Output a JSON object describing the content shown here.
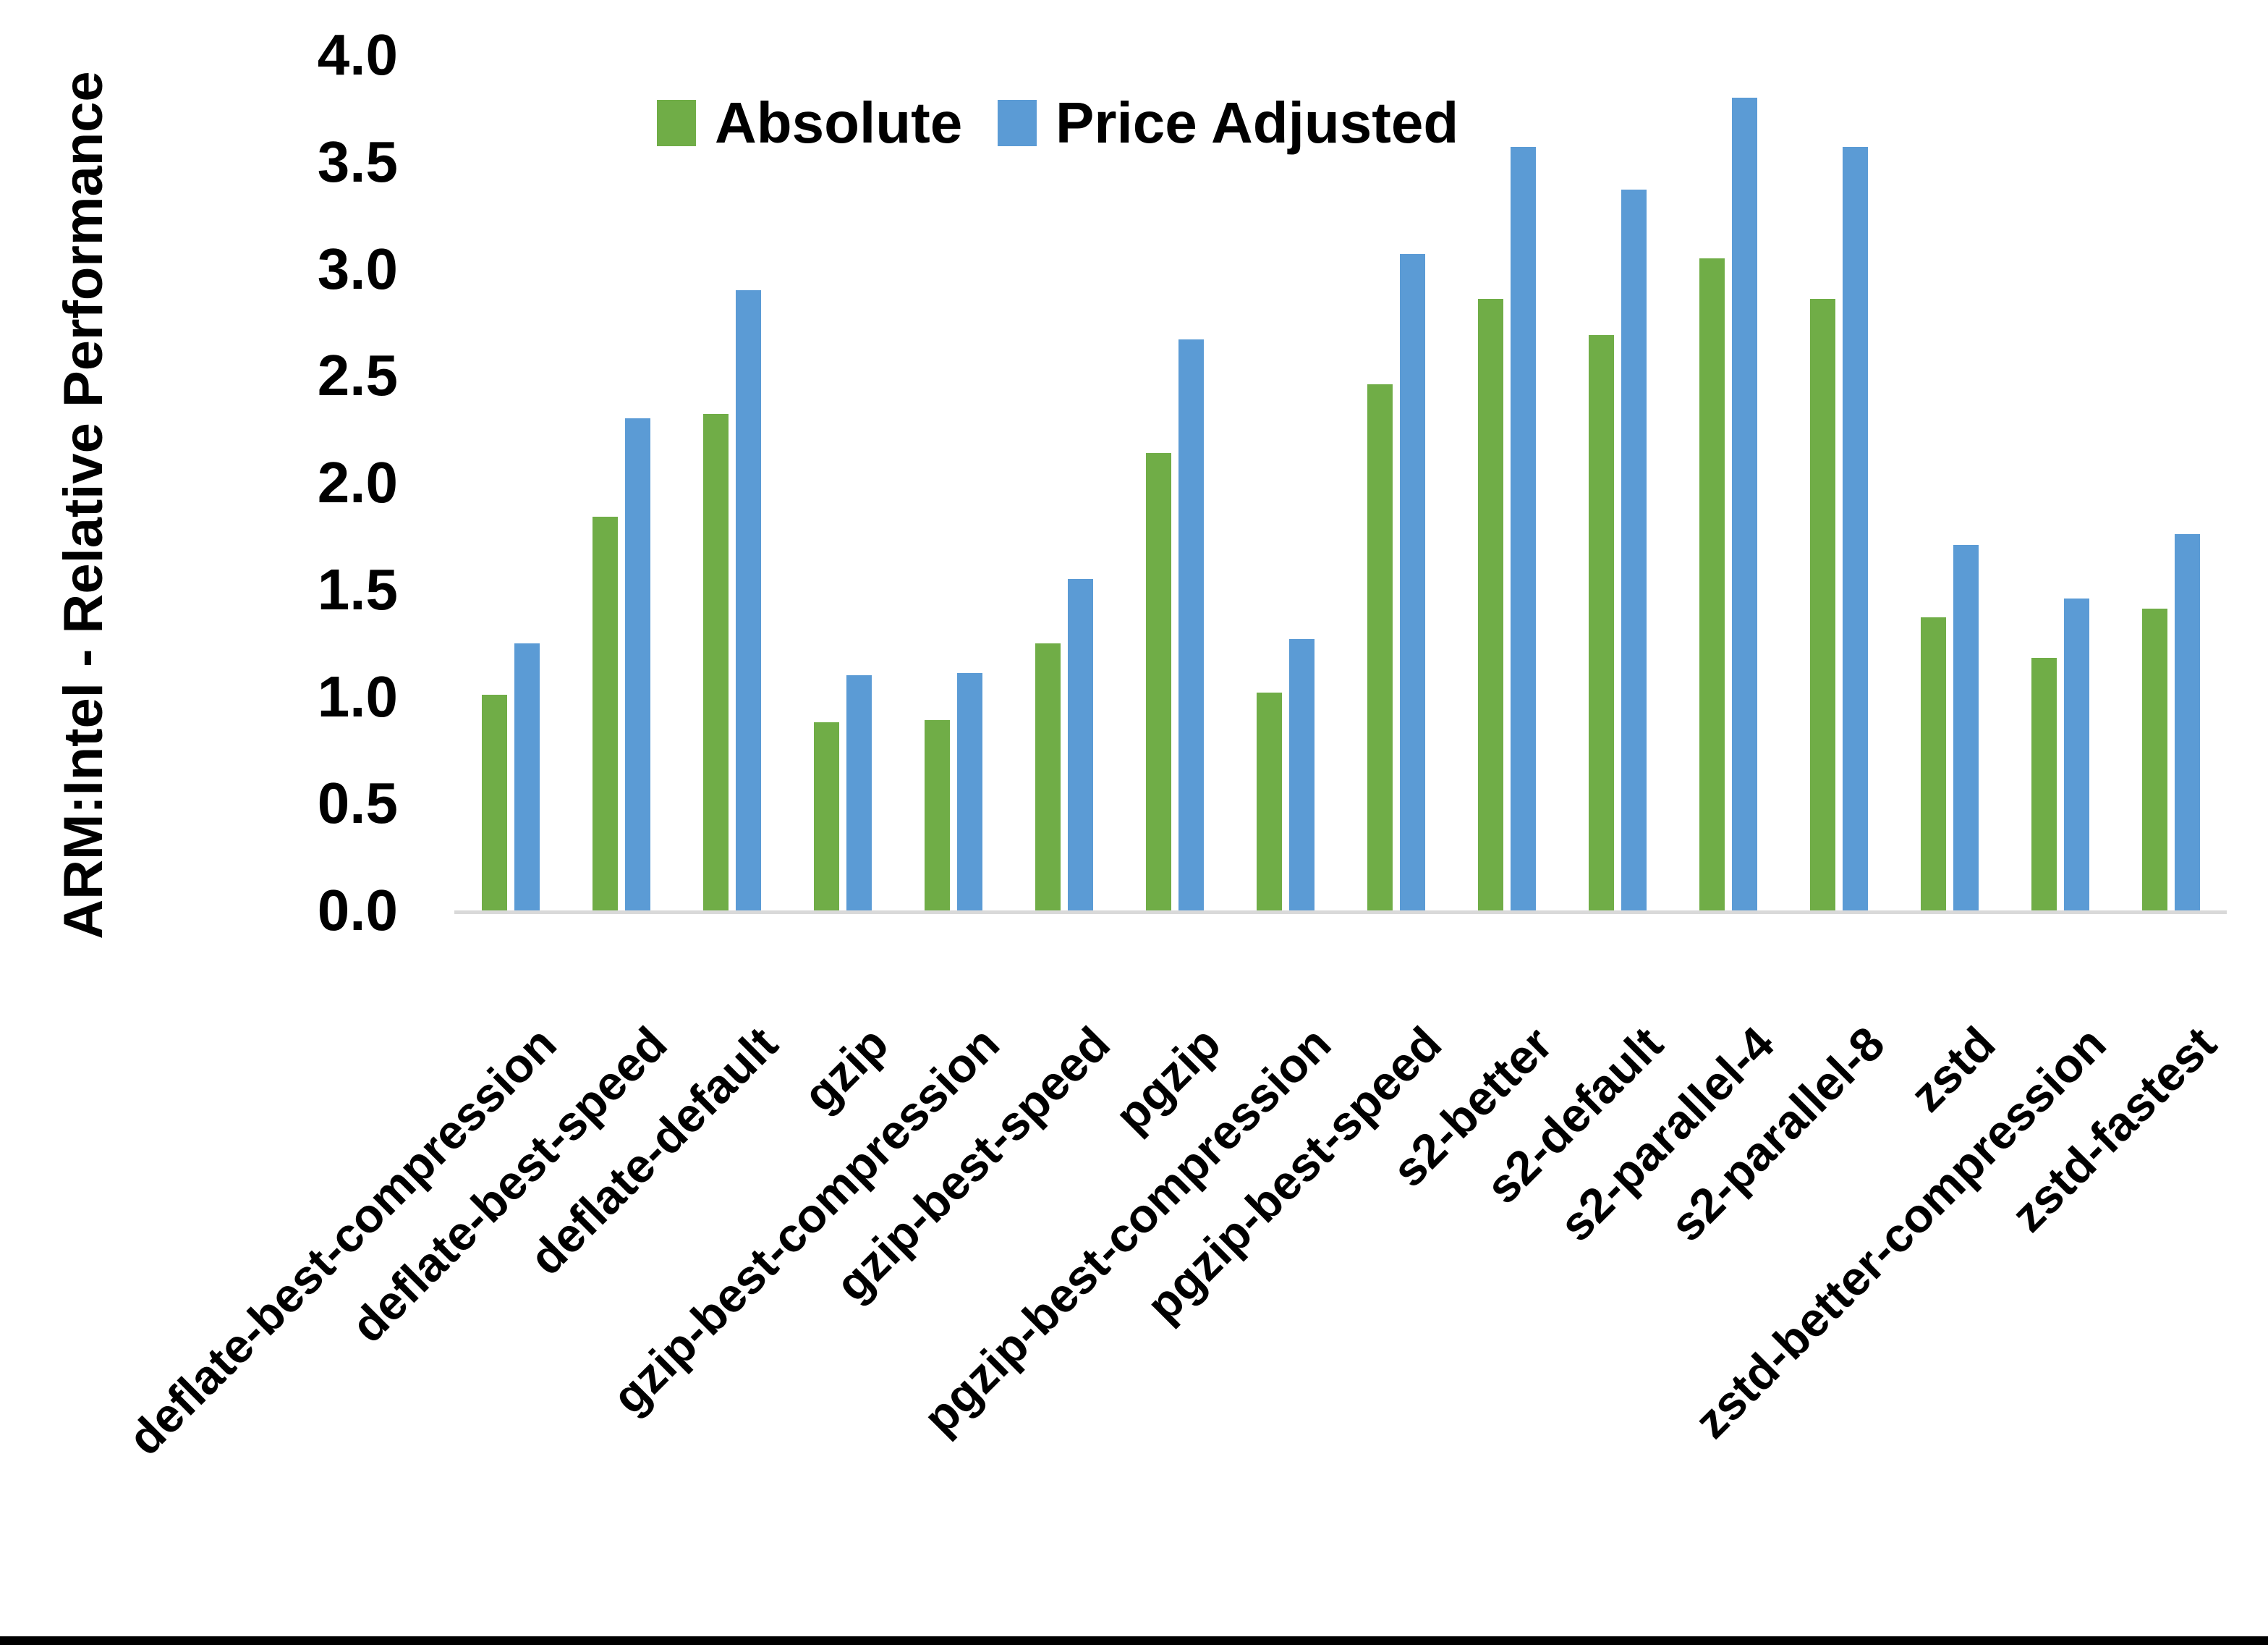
{
  "chart_data": {
    "type": "bar",
    "title": "",
    "ylabel": "ARM:Intel - Relative Performance",
    "xlabel": "",
    "ylim": [
      0.0,
      4.0
    ],
    "ytick_step": 0.5,
    "ytick_labels": [
      "0.0",
      "0.5",
      "1.0",
      "1.5",
      "2.0",
      "2.5",
      "3.0",
      "3.5",
      "4.0"
    ],
    "grid": false,
    "legend_position": "top-center",
    "categories": [
      "deflate-best-compression",
      "deflate-best-speed",
      "deflate-default",
      "gzip",
      "gzip-best-compression",
      "gzip-best-speed",
      "pgzip",
      "pgzip-best-compression",
      "pgzip-best-speed",
      "s2-better",
      "s2-default",
      "s2-parallel-4",
      "s2-parallel-8",
      "zstd",
      "zstd-better-compression",
      "zstd-fastest"
    ],
    "series": [
      {
        "name": "Absolute",
        "color": "#70AD47",
        "values": [
          1.01,
          1.84,
          2.32,
          0.88,
          0.89,
          1.25,
          2.14,
          1.02,
          2.46,
          2.86,
          2.69,
          3.05,
          2.86,
          1.37,
          1.18,
          1.41
        ]
      },
      {
        "name": "Price Adjusted",
        "color": "#5B9BD5",
        "values": [
          1.25,
          2.3,
          2.9,
          1.1,
          1.11,
          1.55,
          2.67,
          1.27,
          3.07,
          3.57,
          3.37,
          3.8,
          3.57,
          1.71,
          1.46,
          1.76
        ]
      }
    ]
  },
  "colors": {
    "background": "#ffffff",
    "axis_line": "#d9d9d9",
    "text": "#000000",
    "bottom_bar": "#000000"
  }
}
